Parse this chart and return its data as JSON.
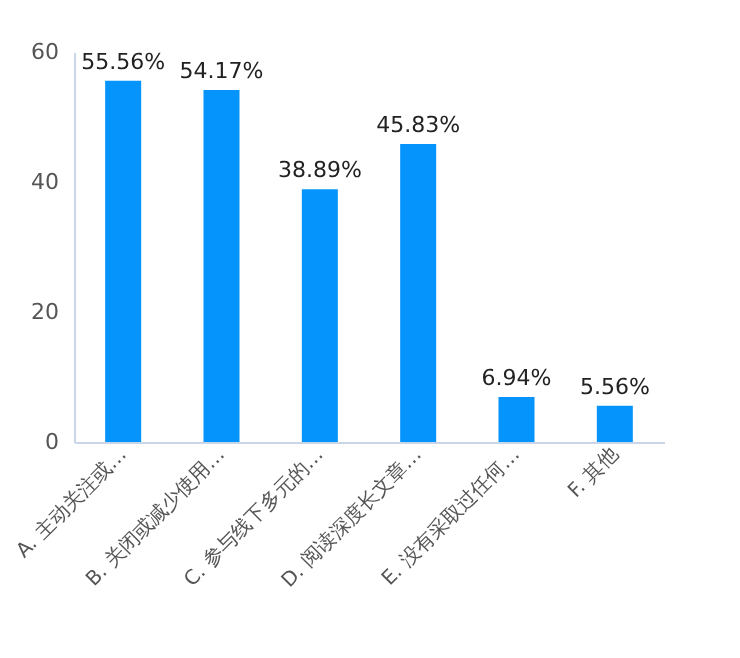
{
  "chart_data": {
    "type": "bar",
    "categories": [
      "A. 主动关注或…",
      "B. 关闭或减少使用…",
      "C. 参与线下多元的…",
      "D. 阅读深度长文章…",
      "E. 没有采取过任何…",
      "F. 其他"
    ],
    "values": [
      55.56,
      54.17,
      38.89,
      45.83,
      6.94,
      5.56
    ],
    "value_labels": [
      "55.56%",
      "54.17%",
      "38.89%",
      "45.83%",
      "6.94%",
      "5.56%"
    ],
    "color": "#0494fc",
    "ylim": [
      0,
      60
    ],
    "yticks": [
      0,
      20,
      40,
      60
    ],
    "grid": false
  }
}
